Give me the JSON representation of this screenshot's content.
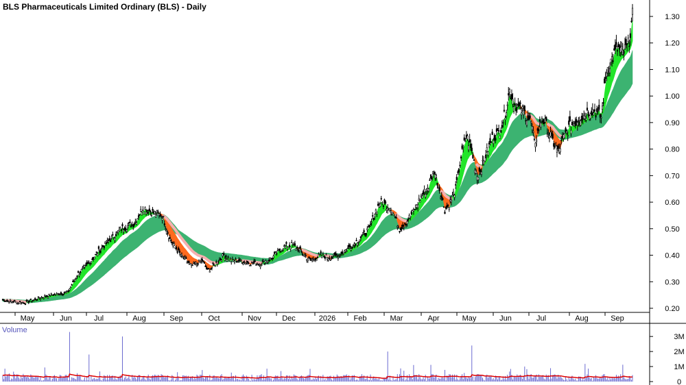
{
  "chart_data": {
    "type": "candlestick",
    "title": "BLS Pharmaceuticals Limited Ordinary (BLS) - Daily",
    "price_axis": {
      "ticks": [
        "0.20",
        "0.30",
        "0.40",
        "0.50",
        "0.60",
        "0.70",
        "0.80",
        "0.90",
        "1.00",
        "1.10",
        "1.20",
        "1.30"
      ],
      "range": [
        0.18,
        1.33
      ]
    },
    "month_labels": [
      "May",
      "Jun",
      "Jul",
      "Aug",
      "Sep",
      "Oct",
      "Nov",
      "Dec",
      "2026",
      "Feb",
      "Mar",
      "Apr",
      "May",
      "Jun",
      "Jul",
      "Aug",
      "Sep"
    ],
    "price_path": [
      [
        0,
        0.23
      ],
      [
        20,
        0.22
      ],
      [
        35,
        0.24
      ],
      [
        45,
        0.25
      ],
      [
        60,
        0.26
      ],
      [
        70,
        0.33
      ],
      [
        80,
        0.37
      ],
      [
        90,
        0.42
      ],
      [
        100,
        0.46
      ],
      [
        110,
        0.5
      ],
      [
        122,
        0.52
      ],
      [
        130,
        0.58
      ],
      [
        140,
        0.56
      ],
      [
        148,
        0.55
      ],
      [
        155,
        0.46
      ],
      [
        165,
        0.4
      ],
      [
        175,
        0.36
      ],
      [
        185,
        0.38
      ],
      [
        190,
        0.34
      ],
      [
        198,
        0.37
      ],
      [
        205,
        0.4
      ],
      [
        212,
        0.38
      ],
      [
        220,
        0.38
      ],
      [
        230,
        0.37
      ],
      [
        240,
        0.37
      ],
      [
        250,
        0.39
      ],
      [
        260,
        0.43
      ],
      [
        268,
        0.44
      ],
      [
        275,
        0.42
      ],
      [
        285,
        0.38
      ],
      [
        295,
        0.4
      ],
      [
        305,
        0.39
      ],
      [
        315,
        0.41
      ],
      [
        325,
        0.44
      ],
      [
        333,
        0.47
      ],
      [
        340,
        0.5
      ],
      [
        345,
        0.56
      ],
      [
        350,
        0.6
      ],
      [
        360,
        0.58
      ],
      [
        368,
        0.5
      ],
      [
        375,
        0.53
      ],
      [
        380,
        0.56
      ],
      [
        388,
        0.62
      ],
      [
        395,
        0.66
      ],
      [
        400,
        0.72
      ],
      [
        405,
        0.65
      ],
      [
        410,
        0.57
      ],
      [
        415,
        0.6
      ],
      [
        420,
        0.65
      ],
      [
        425,
        0.77
      ],
      [
        430,
        0.85
      ],
      [
        435,
        0.79
      ],
      [
        440,
        0.7
      ],
      [
        445,
        0.74
      ],
      [
        450,
        0.8
      ],
      [
        455,
        0.85
      ],
      [
        460,
        0.86
      ],
      [
        465,
        0.92
      ],
      [
        470,
        1.02
      ],
      [
        475,
        0.97
      ],
      [
        480,
        0.95
      ],
      [
        485,
        0.93
      ],
      [
        490,
        0.9
      ],
      [
        493,
        0.82
      ],
      [
        500,
        0.92
      ],
      [
        505,
        0.88
      ],
      [
        510,
        0.83
      ],
      [
        515,
        0.79
      ],
      [
        520,
        0.84
      ],
      [
        525,
        0.88
      ],
      [
        530,
        0.9
      ],
      [
        535,
        0.92
      ],
      [
        540,
        0.93
      ],
      [
        545,
        0.95
      ],
      [
        550,
        0.94
      ],
      [
        555,
        0.92
      ],
      [
        560,
        1.1
      ],
      [
        565,
        1.14
      ],
      [
        570,
        1.18
      ],
      [
        575,
        1.16
      ],
      [
        580,
        1.19
      ],
      [
        584,
        1.3
      ]
    ],
    "series": [
      {
        "name": "",
        "kind": "short-term MA band"
      },
      {
        "name": "",
        "kind": "long-term MA band"
      }
    ],
    "volume": {
      "title": "Volume",
      "ticks": [
        "0",
        "1M",
        "2M",
        "3M"
      ],
      "range": [
        0,
        3.6
      ],
      "spikes": [
        [
          102,
          3.3
        ],
        [
          130,
          1.8
        ],
        [
          178,
          3.0
        ],
        [
          565,
          2.0
        ],
        [
          688,
          2.4
        ],
        [
          923,
          1.5
        ]
      ]
    },
    "colors": {
      "short_band_up": "#22e52a",
      "short_band_down": "#ff6a1f",
      "short_band_lag": "#f6b0b0",
      "long_band": "#3cb371",
      "candle": "#000000",
      "volume_bar": "#6a6ad0",
      "volume_ma": "#dd0000",
      "grid": "#000000"
    }
  }
}
